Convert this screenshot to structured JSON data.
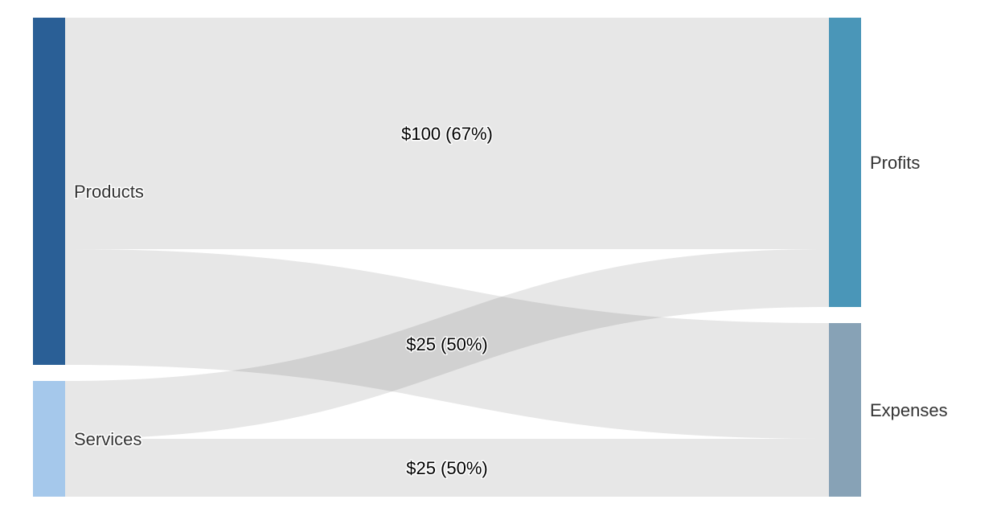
{
  "chart_data": {
    "type": "sankey",
    "unit_prefix": "$",
    "nodes": [
      {
        "id": "products",
        "name": "Products",
        "side": "source",
        "color": "#2a5f96"
      },
      {
        "id": "services",
        "name": "Services",
        "side": "source",
        "color": "#a5c8eb"
      },
      {
        "id": "profits",
        "name": "Profits",
        "side": "target",
        "color": "#4a96b8"
      },
      {
        "id": "expenses",
        "name": "Expenses",
        "side": "target",
        "color": "#87a2b6"
      }
    ],
    "links": [
      {
        "source": "products",
        "target": "profits",
        "value": 100,
        "label": "$100 (67%)"
      },
      {
        "source": "products",
        "target": "expenses",
        "value": 50,
        "label": ""
      },
      {
        "source": "services",
        "target": "profits",
        "value": 25,
        "label": "$25 (50%)"
      },
      {
        "source": "services",
        "target": "expenses",
        "value": 25,
        "label": "$25 (50%)"
      }
    ],
    "link_color": "#e3e3e3"
  }
}
